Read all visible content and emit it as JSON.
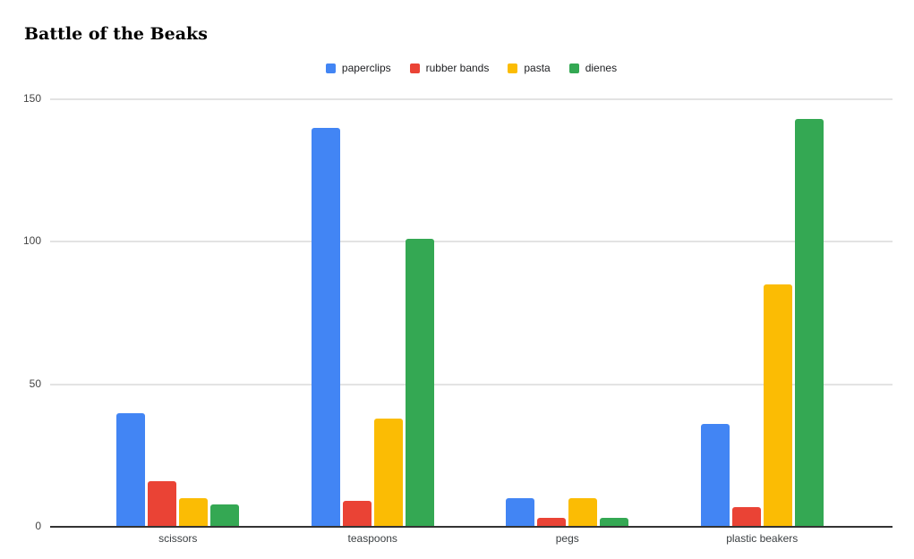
{
  "title": "Battle of the Beaks",
  "chart_data": {
    "type": "bar",
    "title": "Battle of the Beaks",
    "categories": [
      "scissors",
      "teaspoons",
      "pegs",
      "plastic beakers"
    ],
    "series": [
      {
        "name": "paperclips",
        "color": "#4285F4",
        "values": [
          40,
          140,
          10,
          36
        ]
      },
      {
        "name": "rubber bands",
        "color": "#EA4335",
        "values": [
          16,
          9,
          3,
          7
        ]
      },
      {
        "name": "pasta",
        "color": "#FBBC04",
        "values": [
          10,
          38,
          10,
          85
        ]
      },
      {
        "name": "dienes",
        "color": "#34A853",
        "values": [
          8,
          101,
          3,
          143
        ]
      }
    ],
    "xlabel": "",
    "ylabel": "",
    "ylim": [
      0,
      150
    ],
    "yticks": [
      0,
      50,
      100,
      150
    ],
    "grid": true,
    "legend_position": "top-center",
    "background_color": "#ffffff",
    "gridline_color": "#e3e3e3",
    "axis_line_color": "#333333"
  }
}
